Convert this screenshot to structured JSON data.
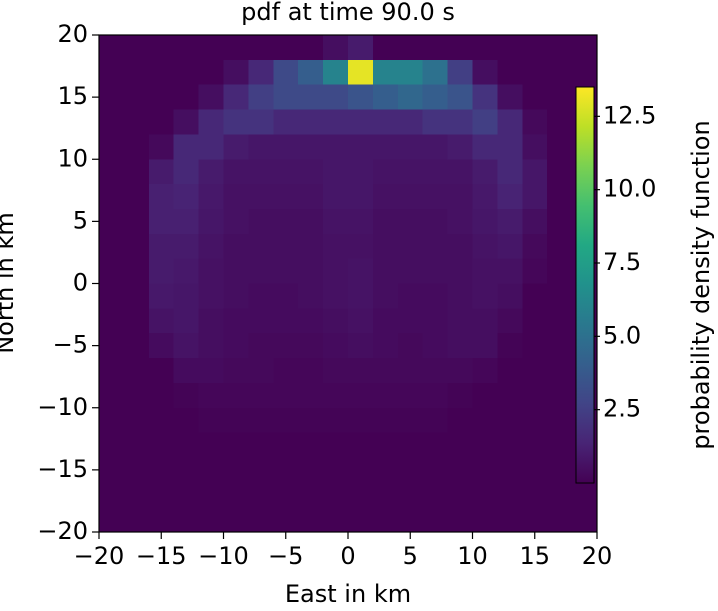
{
  "chart_data": {
    "type": "heatmap",
    "title": "pdf at time 90.0 s",
    "xlabel": "East in km",
    "ylabel": "North in km",
    "colorbar_label": "probability density function",
    "colormap": "viridis",
    "x": [
      -19,
      -17,
      -15,
      -13,
      -11,
      -9,
      -7,
      -5,
      -3,
      -1,
      1,
      3,
      5,
      7,
      9,
      11,
      13,
      15,
      17,
      19
    ],
    "y": [
      19,
      17,
      15,
      13,
      11,
      9,
      7,
      5,
      3,
      1,
      -1,
      -3,
      -5,
      -7,
      -9,
      -11,
      -13,
      -15,
      -17,
      -19
    ],
    "values": [
      [
        0,
        0,
        0,
        0,
        0,
        0,
        0,
        0,
        0,
        0.5,
        1,
        0,
        0,
        0,
        0,
        0,
        0,
        0,
        0,
        0
      ],
      [
        0,
        0,
        0,
        0,
        0,
        0.5,
        1.5,
        3,
        4,
        6,
        13,
        6,
        6,
        5,
        2.5,
        0.5,
        0,
        0,
        0,
        0
      ],
      [
        0,
        0,
        0,
        0,
        0.5,
        1.5,
        2.5,
        3,
        3,
        3,
        3.5,
        4,
        4.5,
        4,
        3.5,
        2,
        0.5,
        0,
        0,
        0
      ],
      [
        0,
        0,
        0,
        0.5,
        1.5,
        2,
        2,
        1.5,
        1.5,
        1.5,
        1.5,
        1.5,
        1.5,
        2,
        2,
        2.5,
        1.5,
        0.3,
        0,
        0
      ],
      [
        0,
        0,
        0.3,
        1.5,
        1.5,
        1,
        0.8,
        0.8,
        0.8,
        0.8,
        0.8,
        0.8,
        0.8,
        0.8,
        1,
        1.5,
        1.5,
        0.5,
        0,
        0
      ],
      [
        0,
        0,
        1,
        1.5,
        1,
        0.7,
        0.7,
        0.7,
        0.7,
        0.8,
        0.8,
        0.7,
        0.7,
        0.7,
        0.7,
        1,
        1.5,
        0.8,
        0,
        0
      ],
      [
        0,
        0,
        1.2,
        1.3,
        0.9,
        0.6,
        0.6,
        0.6,
        0.6,
        0.8,
        0.8,
        0.6,
        0.6,
        0.6,
        0.6,
        0.9,
        1.3,
        0.8,
        0,
        0
      ],
      [
        0,
        0,
        1.2,
        1.2,
        0.8,
        0.6,
        0.5,
        0.5,
        0.5,
        0.7,
        0.7,
        0.5,
        0.5,
        0.5,
        0.6,
        0.8,
        1,
        0.5,
        0,
        0
      ],
      [
        0,
        0,
        1,
        1,
        0.7,
        0.5,
        0.5,
        0.5,
        0.5,
        0.6,
        0.6,
        0.5,
        0.5,
        0.5,
        0.5,
        0.7,
        0.8,
        0.3,
        0,
        0
      ],
      [
        0,
        0,
        1,
        0.9,
        0.6,
        0.5,
        0.5,
        0.5,
        0.5,
        0.6,
        0.7,
        0.5,
        0.5,
        0.5,
        0.5,
        0.6,
        0.6,
        0.2,
        0,
        0
      ],
      [
        0,
        0,
        0.9,
        0.8,
        0.6,
        0.5,
        0.4,
        0.4,
        0.5,
        0.6,
        0.7,
        0.5,
        0.4,
        0.4,
        0.5,
        0.6,
        0.5,
        0,
        0,
        0
      ],
      [
        0,
        0,
        0.7,
        0.8,
        0.5,
        0.4,
        0.4,
        0.4,
        0.4,
        0.5,
        0.6,
        0.4,
        0.4,
        0.4,
        0.5,
        0.5,
        0.3,
        0,
        0,
        0
      ],
      [
        0,
        0,
        0.4,
        0.7,
        0.5,
        0.4,
        0.3,
        0.3,
        0.3,
        0.4,
        0.5,
        0.4,
        0.3,
        0.4,
        0.5,
        0.5,
        0.1,
        0,
        0,
        0
      ],
      [
        0,
        0,
        0,
        0.4,
        0.4,
        0.3,
        0.3,
        0.2,
        0.2,
        0.3,
        0.3,
        0.3,
        0.3,
        0.3,
        0.3,
        0.2,
        0,
        0,
        0,
        0
      ],
      [
        0,
        0,
        0,
        0.1,
        0.2,
        0.2,
        0.2,
        0.2,
        0.2,
        0.2,
        0.2,
        0.2,
        0.2,
        0.2,
        0.1,
        0,
        0,
        0,
        0,
        0
      ],
      [
        0,
        0,
        0,
        0,
        0.1,
        0.1,
        0.1,
        0.1,
        0.1,
        0.1,
        0.1,
        0.1,
        0.1,
        0.1,
        0,
        0,
        0,
        0,
        0,
        0
      ],
      [
        0,
        0,
        0,
        0,
        0,
        0,
        0,
        0,
        0,
        0,
        0,
        0,
        0,
        0,
        0,
        0,
        0,
        0,
        0,
        0
      ],
      [
        0,
        0,
        0,
        0,
        0,
        0,
        0,
        0,
        0,
        0,
        0,
        0,
        0,
        0,
        0,
        0,
        0,
        0,
        0,
        0
      ],
      [
        0,
        0,
        0,
        0,
        0,
        0,
        0,
        0,
        0,
        0,
        0,
        0,
        0,
        0,
        0,
        0,
        0,
        0,
        0,
        0
      ],
      [
        0,
        0,
        0,
        0,
        0,
        0,
        0,
        0,
        0,
        0,
        0,
        0,
        0,
        0,
        0,
        0,
        0,
        0,
        0,
        0
      ]
    ],
    "xlim": [
      -20,
      20
    ],
    "ylim": [
      -20,
      20
    ],
    "xticks": [
      {
        "value": -20,
        "label": "−20"
      },
      {
        "value": -15,
        "label": "−15"
      },
      {
        "value": -10,
        "label": "−10"
      },
      {
        "value": -5,
        "label": "−5"
      },
      0,
      5,
      10,
      15,
      20
    ],
    "yticks": [
      {
        "value": -20,
        "label": "−20"
      },
      {
        "value": -15,
        "label": "−15"
      },
      {
        "value": -10,
        "label": "−10"
      },
      {
        "value": -5,
        "label": "−5"
      },
      0,
      5,
      10,
      15,
      20
    ],
    "clim": [
      0,
      13.5
    ],
    "cticks": [
      2.5,
      {
        "value": 5,
        "label": "5.0"
      },
      7.5,
      {
        "value": 10,
        "label": "10.0"
      },
      12.5
    ]
  }
}
